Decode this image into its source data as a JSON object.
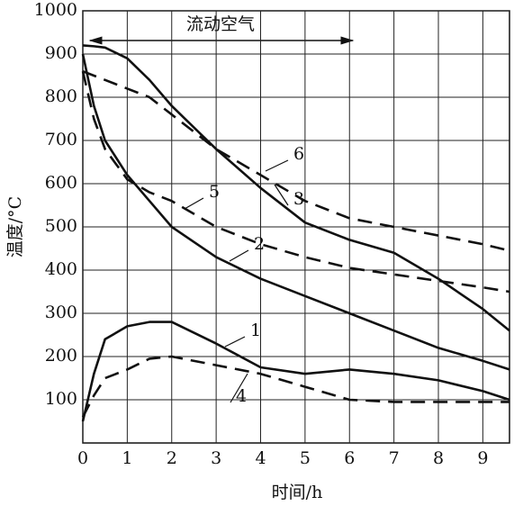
{
  "chart_data": {
    "type": "line",
    "annotation": "流动空气",
    "xlabel": "时间/h",
    "ylabel": "温度/°C",
    "x": [
      0,
      0.25,
      0.5,
      1,
      1.5,
      2,
      3,
      4,
      5,
      6,
      7,
      8,
      9,
      9.6
    ],
    "series": [
      {
        "name": "1",
        "color": "#111111",
        "dashed": false,
        "values": [
          50,
          160,
          240,
          270,
          280,
          280,
          230,
          175,
          160,
          170,
          160,
          145,
          120,
          100
        ]
      },
      {
        "name": "2",
        "color": "#111111",
        "dashed": false,
        "values": [
          900,
          780,
          700,
          620,
          560,
          500,
          430,
          380,
          340,
          300,
          260,
          220,
          190,
          170
        ]
      },
      {
        "name": "3",
        "color": "#111111",
        "dashed": false,
        "values": [
          920,
          918,
          915,
          890,
          840,
          780,
          680,
          590,
          510,
          470,
          440,
          380,
          310,
          260
        ]
      },
      {
        "name": "4",
        "color": "#111111",
        "dashed": true,
        "values": [
          60,
          110,
          150,
          170,
          195,
          200,
          180,
          160,
          130,
          100,
          95,
          95,
          95,
          95
        ]
      },
      {
        "name": "5",
        "color": "#111111",
        "dashed": true,
        "values": [
          860,
          750,
          680,
          610,
          580,
          560,
          500,
          460,
          430,
          405,
          390,
          375,
          360,
          350
        ]
      },
      {
        "name": "6",
        "color": "#111111",
        "dashed": true,
        "values": [
          860,
          850,
          840,
          820,
          800,
          760,
          680,
          620,
          560,
          520,
          500,
          480,
          460,
          445
        ]
      }
    ],
    "xlim": [
      0,
      9.6
    ],
    "xticks": [
      0,
      1,
      2,
      3,
      4,
      5,
      6,
      7,
      8,
      9
    ],
    "ylim": [
      0,
      1000
    ],
    "yticks": [
      100,
      200,
      300,
      400,
      500,
      600,
      700,
      800,
      900,
      1000
    ],
    "grid": true
  }
}
